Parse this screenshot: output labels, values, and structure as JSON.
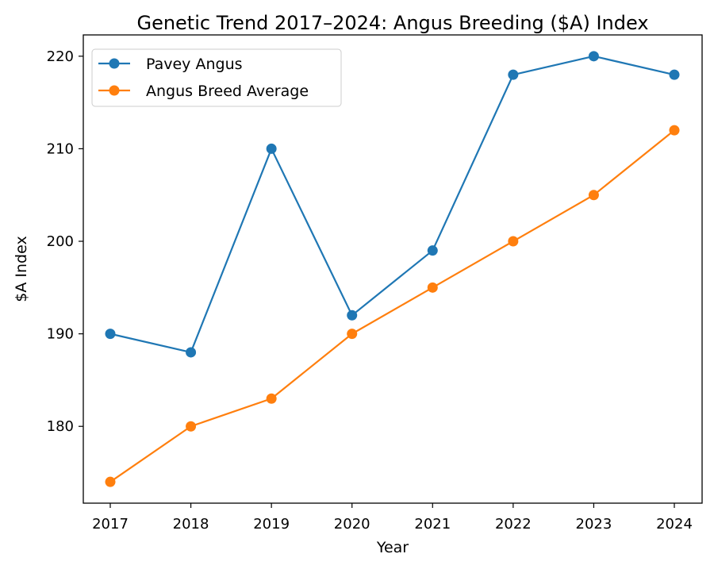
{
  "chart_data": {
    "type": "line",
    "title": "Genetic Trend 2017–2024: Angus Breeding ($A) Index",
    "xlabel": "Year",
    "ylabel": "$A Index",
    "categories": [
      "2017",
      "2018",
      "2019",
      "2020",
      "2021",
      "2022",
      "2023",
      "2024"
    ],
    "x_ticks": [
      "2017",
      "2018",
      "2019",
      "2020",
      "2021",
      "2022",
      "2023",
      "2024"
    ],
    "y_ticks": [
      "180",
      "190",
      "200",
      "210",
      "220"
    ],
    "y_tick_values": [
      180,
      190,
      200,
      210,
      220
    ],
    "ylim": [
      171.7,
      222.3
    ],
    "grid": false,
    "legend_position": "top-left",
    "series": [
      {
        "name": "Pavey Angus",
        "color": "#1f77b4",
        "values": [
          190,
          188,
          210,
          192,
          199,
          218,
          220,
          218
        ]
      },
      {
        "name": "Angus Breed Average",
        "color": "#ff7f0e",
        "values": [
          174,
          180,
          183,
          190,
          195,
          200,
          205,
          212
        ]
      }
    ]
  }
}
